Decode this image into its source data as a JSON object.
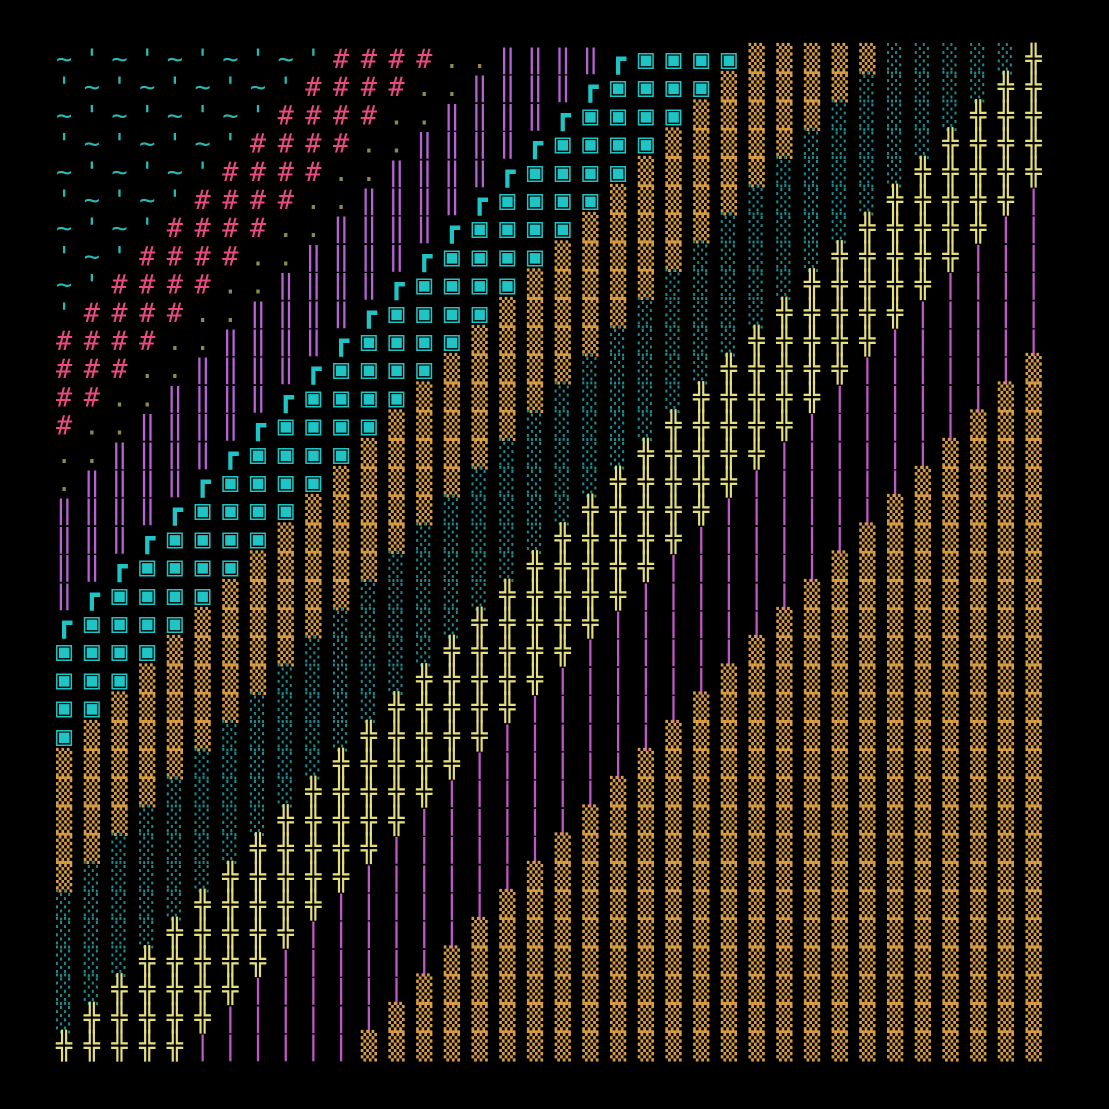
{
  "rows": [
    "~'~'~'~'~'####..‖‖‖‖┏▣▣▣▣▒▒▒▒▒░░░░░╬",
    "'~'~'~'~'####..‖‖‖‖┏▣▣▣▣▒▒▒▒▒░░░░░╬╬",
    "~'~'~'~'####..‖‖‖‖┏▣▣▣▣▒▒▒▒▒░░░░░╬╬╬",
    "'~'~'~'####..‖‖‖‖┏▣▣▣▣▒▒▒▒▒░░░░░╬╬╬╬",
    "~'~'~'####..‖‖‖‖┏▣▣▣▣▒▒▒▒▒░░░░░╬╬╬╬╬",
    "'~'~'####..‖‖‖‖┏▣▣▣▣▒▒▒▒▒░░░░░╬╬╬╬╬|",
    "~'~'####..‖‖‖‖┏▣▣▣▣▒▒▒▒▒░░░░░╬╬╬╬╬||",
    "'~'####..‖‖‖‖┏▣▣▣▣▒▒▒▒▒░░░░░╬╬╬╬╬|||",
    "~'####..‖‖‖‖┏▣▣▣▣▒▒▒▒▒░░░░░╬╬╬╬╬||||",
    "'####..‖‖‖‖┏▣▣▣▣▒▒▒▒▒░░░░░╬╬╬╬╬|||||",
    "####..‖‖‖‖┏▣▣▣▣▒▒▒▒▒░░░░░╬╬╬╬╬||||||",
    "###..‖‖‖‖┏▣▣▣▣▒▒▒▒▒░░░░░╬╬╬╬╬||||||▒",
    "##..‖‖‖‖┏▣▣▣▣▒▒▒▒▒░░░░░╬╬╬╬╬||||||▒▒",
    "#..‖‖‖‖┏▣▣▣▣▒▒▒▒▒░░░░░╬╬╬╬╬||||||▒▒▒",
    "..‖‖‖‖┏▣▣▣▣▒▒▒▒▒░░░░░╬╬╬╬╬||||||▒▒▒▒",
    ".‖‖‖‖┏▣▣▣▣▒▒▒▒▒░░░░░╬╬╬╬╬||||||▒▒▒▒▒",
    "‖‖‖‖┏▣▣▣▣▒▒▒▒▒░░░░░╬╬╬╬╬||||||▒▒▒▒▒▒",
    "‖‖‖┏▣▣▣▣▒▒▒▒▒░░░░░╬╬╬╬╬||||||▒▒▒▒▒▒▒",
    "‖‖┏▣▣▣▣▒▒▒▒▒░░░░░╬╬╬╬╬||||||▒▒▒▒▒▒▒▒",
    "‖┏▣▣▣▣▒▒▒▒▒░░░░░╬╬╬╬╬||||||▒▒▒▒▒▒▒▒▒",
    "┏▣▣▣▣▒▒▒▒▒░░░░░╬╬╬╬╬||||||▒▒▒▒▒▒▒▒▒▒",
    "▣▣▣▣▒▒▒▒▒░░░░░╬╬╬╬╬||||||▒▒▒▒▒▒▒▒▒▒▒",
    "▣▣▣▒▒▒▒▒░░░░░╬╬╬╬╬||||||▒▒▒▒▒▒▒▒▒▒▒▒",
    "▣▣▒▒▒▒▒░░░░░╬╬╬╬╬||||||▒▒▒▒▒▒▒▒▒▒▒▒▒",
    "▣▒▒▒▒▒░░░░░╬╬╬╬╬||||||▒▒▒▒▒▒▒▒▒▒▒▒▒▒",
    "▒▒▒▒▒░░░░░╬╬╬╬╬||||||▒▒▒▒▒▒▒▒▒▒▒▒▒▒▒",
    "▒▒▒▒░░░░░╬╬╬╬╬||||||▒▒▒▒▒▒▒▒▒▒▒▒▒▒▒▒",
    "▒▒▒░░░░░╬╬╬╬╬||||||▒▒▒▒▒▒▒▒▒▒▒▒▒▒▒▒▒",
    "▒▒░░░░░╬╬╬╬╬||||||▒▒▒▒▒▒▒▒▒▒▒▒▒▒▒▒▒▒",
    "▒░░░░░╬╬╬╬╬||||||▒▒▒▒▒▒▒▒▒▒▒▒▒▒▒▒▒▒▒",
    "░░░░░╬╬╬╬╬||||||▒▒▒▒▒▒▒▒▒▒▒▒▒▒▒▒▒▒▒▒",
    "░░░░╬╬╬╬╬||||||▒▒▒▒▒▒▒▒▒▒▒▒▒▒▒▒▒▒▒▒▒",
    "░░░╬╬╬╬╬||||||▒▒▒▒▒▒▒▒▒▒▒▒▒▒▒▒▒▒▒▒▒▒",
    "░░╬╬╬╬╬||||||▒▒▒▒▒▒▒▒▒▒▒▒▒▒▒▒▒▒▒▒▒▒▒",
    "░╬╬╬╬╬||||||▒▒▒▒▒▒▒▒▒▒▒▒▒▒▒▒▒▒▒▒▒▒▒▒",
    "╬╬╬╬╬||||||▒▒▒▒▒▒▒▒▒▒▒▒▒▒▒▒▒▒▒▒▒▒▒▒▒"
  ]
}
